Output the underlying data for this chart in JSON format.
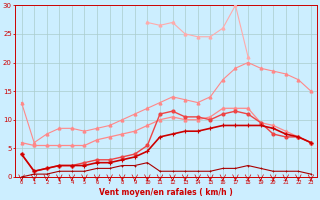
{
  "x": [
    0,
    1,
    2,
    3,
    4,
    5,
    6,
    7,
    8,
    9,
    10,
    11,
    12,
    13,
    14,
    15,
    16,
    17,
    18,
    19,
    20,
    21,
    22,
    23
  ],
  "line_gust_max": [
    null,
    null,
    null,
    null,
    null,
    null,
    null,
    null,
    null,
    null,
    27,
    26.5,
    27,
    25,
    24.5,
    24.5,
    26,
    30,
    21,
    null,
    null,
    null,
    null,
    null
  ],
  "line_upper": [
    13,
    6,
    7.5,
    8.5,
    8.5,
    8,
    8.5,
    9,
    10,
    11,
    12,
    13,
    14,
    13.5,
    13,
    14,
    17,
    19,
    20,
    19,
    18.5,
    18,
    17,
    15
  ],
  "line_mid_upper": [
    6,
    5.5,
    5.5,
    5.5,
    5.5,
    5.5,
    6.5,
    7,
    7.5,
    8,
    9,
    10,
    10.5,
    10,
    10,
    10.5,
    12,
    12,
    12,
    9.5,
    9,
    8,
    7,
    6
  ],
  "line_mid": [
    4,
    1,
    1.5,
    2,
    2,
    2.5,
    3,
    3,
    3.5,
    4,
    5.5,
    11,
    11.5,
    10.5,
    10.5,
    10,
    11,
    11.5,
    11,
    9.5,
    7.5,
    7,
    7,
    6
  ],
  "line_lower": [
    4,
    1,
    1.5,
    2,
    2,
    2,
    2.5,
    2.5,
    3,
    3.5,
    4.5,
    7,
    7.5,
    8,
    8,
    8.5,
    9,
    9,
    9,
    9,
    8.5,
    7.5,
    7,
    6
  ],
  "line_bottom": [
    0,
    0.5,
    0.5,
    1,
    1,
    1,
    1.5,
    1.5,
    2,
    2,
    2.5,
    1,
    1,
    1,
    1,
    1,
    1.5,
    1.5,
    2,
    1.5,
    1,
    1,
    1,
    0.5
  ],
  "bg_color": "#cceeff",
  "grid_color": "#aacccc",
  "c_vlight": "#ffaaaa",
  "c_light": "#ff8888",
  "c_mid": "#ee4444",
  "c_dark": "#cc0000",
  "c_xdark": "#aa0000",
  "xlabel": "Vent moyen/en rafales ( km/h )",
  "ylim": [
    0,
    30
  ],
  "xlim": [
    -0.5,
    23.5
  ],
  "yticks": [
    0,
    5,
    10,
    15,
    20,
    25,
    30
  ],
  "xticks": [
    0,
    1,
    2,
    3,
    4,
    5,
    6,
    7,
    8,
    9,
    10,
    11,
    12,
    13,
    14,
    15,
    16,
    17,
    18,
    19,
    20,
    21,
    22,
    23
  ]
}
